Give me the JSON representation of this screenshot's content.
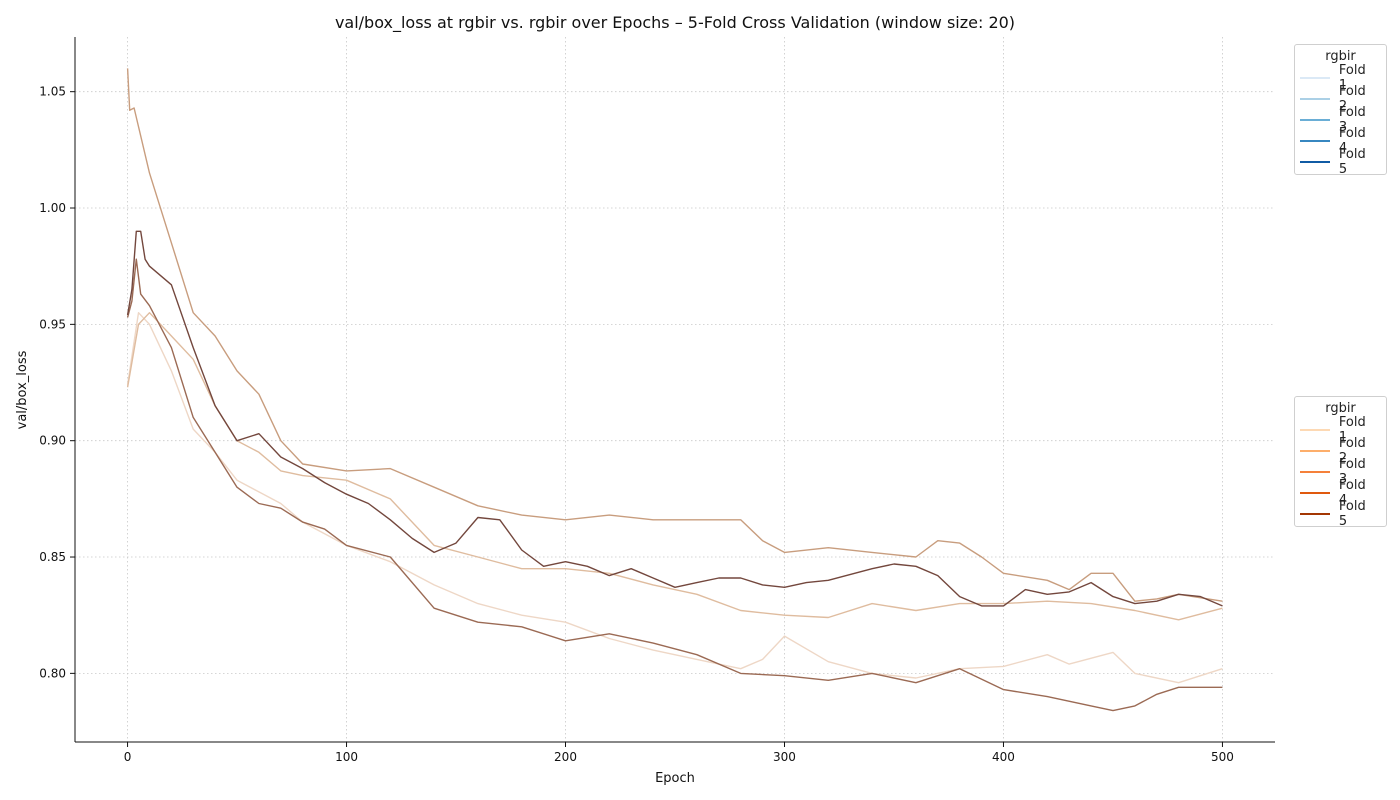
{
  "chart_data": {
    "type": "line",
    "title": "val/box_loss at rgbir vs. rgbir over Epochs – 5-Fold Cross Validation (window size: 20)",
    "xlabel": "Epoch",
    "ylabel": "val/box_loss",
    "xlim": [
      -24,
      524
    ],
    "ylim": [
      0.7705,
      1.0735
    ],
    "xticks": [
      0,
      100,
      200,
      300,
      400,
      500
    ],
    "xtick_labels": [
      "0",
      "100",
      "200",
      "300",
      "400",
      "500"
    ],
    "yticks": [
      0.8,
      0.85,
      0.9,
      0.95,
      1.0,
      1.05
    ],
    "ytick_labels": [
      "0.80",
      "0.85",
      "0.90",
      "0.95",
      "1.00",
      "1.05"
    ],
    "grid": true,
    "legends": [
      {
        "title": "rgbir",
        "placement": "upper-right-outside",
        "entries": [
          {
            "label": "Fold 1",
            "color": "#dbe9f6"
          },
          {
            "label": "Fold 2",
            "color": "#abd0e6"
          },
          {
            "label": "Fold 3",
            "color": "#6aaed6"
          },
          {
            "label": "Fold 4",
            "color": "#3787c0"
          },
          {
            "label": "Fold 5",
            "color": "#105ba4"
          }
        ]
      },
      {
        "title": "rgbir",
        "placement": "center-right-outside",
        "entries": [
          {
            "label": "Fold 1",
            "color": "#fdd9b4"
          },
          {
            "label": "Fold 2",
            "color": "#fdae6b"
          },
          {
            "label": "Fold 3",
            "color": "#f5813a"
          },
          {
            "label": "Fold 4",
            "color": "#e0590e"
          },
          {
            "label": "Fold 5",
            "color": "#a33603"
          }
        ]
      }
    ],
    "series": [
      {
        "color": "#eed7c6",
        "x": [
          0,
          5,
          10,
          20,
          30,
          40,
          50,
          60,
          70,
          80,
          100,
          120,
          140,
          160,
          180,
          200,
          220,
          240,
          260,
          280,
          290,
          300,
          320,
          340,
          360,
          380,
          400,
          420,
          430,
          450,
          460,
          480,
          500
        ],
        "y": [
          0.924,
          0.955,
          0.95,
          0.93,
          0.905,
          0.895,
          0.883,
          0.878,
          0.873,
          0.865,
          0.855,
          0.848,
          0.838,
          0.83,
          0.825,
          0.822,
          0.815,
          0.81,
          0.806,
          0.802,
          0.806,
          0.816,
          0.805,
          0.8,
          0.798,
          0.802,
          0.803,
          0.808,
          0.804,
          0.809,
          0.8,
          0.796,
          0.802
        ]
      },
      {
        "color": "#dfbc9f",
        "x": [
          0,
          5,
          10,
          20,
          30,
          40,
          50,
          60,
          70,
          80,
          100,
          120,
          140,
          160,
          180,
          200,
          220,
          240,
          260,
          280,
          300,
          320,
          340,
          360,
          380,
          400,
          420,
          440,
          460,
          480,
          500
        ],
        "y": [
          0.923,
          0.95,
          0.955,
          0.945,
          0.935,
          0.915,
          0.9,
          0.895,
          0.887,
          0.885,
          0.883,
          0.875,
          0.855,
          0.85,
          0.845,
          0.845,
          0.843,
          0.838,
          0.834,
          0.827,
          0.825,
          0.824,
          0.83,
          0.827,
          0.83,
          0.83,
          0.831,
          0.83,
          0.827,
          0.823,
          0.828
        ]
      },
      {
        "color": "#c89d7e",
        "x": [
          0,
          1,
          3,
          5,
          10,
          20,
          30,
          40,
          50,
          60,
          70,
          80,
          100,
          120,
          140,
          160,
          180,
          200,
          220,
          240,
          260,
          280,
          290,
          300,
          320,
          340,
          360,
          370,
          380,
          390,
          400,
          420,
          430,
          440,
          450,
          460,
          470,
          480,
          500
        ],
        "y": [
          1.06,
          1.042,
          1.043,
          1.035,
          1.015,
          0.985,
          0.955,
          0.945,
          0.93,
          0.92,
          0.9,
          0.89,
          0.887,
          0.888,
          0.88,
          0.872,
          0.868,
          0.866,
          0.868,
          0.866,
          0.866,
          0.866,
          0.857,
          0.852,
          0.854,
          0.852,
          0.85,
          0.857,
          0.856,
          0.85,
          0.843,
          0.84,
          0.836,
          0.843,
          0.843,
          0.831,
          0.832,
          0.834,
          0.831
        ]
      },
      {
        "color": "#9b6a54",
        "x": [
          0,
          2,
          4,
          6,
          10,
          20,
          30,
          40,
          50,
          60,
          70,
          80,
          90,
          100,
          120,
          140,
          160,
          180,
          200,
          220,
          240,
          260,
          280,
          300,
          320,
          340,
          360,
          380,
          400,
          420,
          440,
          450,
          460,
          470,
          480,
          500
        ],
        "y": [
          0.953,
          0.96,
          0.978,
          0.963,
          0.958,
          0.94,
          0.91,
          0.895,
          0.88,
          0.873,
          0.871,
          0.865,
          0.862,
          0.855,
          0.85,
          0.828,
          0.822,
          0.82,
          0.814,
          0.817,
          0.813,
          0.808,
          0.8,
          0.799,
          0.797,
          0.8,
          0.796,
          0.802,
          0.793,
          0.79,
          0.786,
          0.784,
          0.786,
          0.791,
          0.794,
          0.794
        ]
      },
      {
        "color": "#73473d",
        "x": [
          0,
          2,
          4,
          6,
          8,
          10,
          20,
          30,
          40,
          50,
          60,
          70,
          80,
          90,
          100,
          110,
          120,
          130,
          140,
          150,
          160,
          170,
          180,
          190,
          200,
          210,
          220,
          230,
          240,
          250,
          260,
          270,
          280,
          290,
          300,
          310,
          320,
          340,
          350,
          360,
          370,
          380,
          390,
          400,
          410,
          420,
          430,
          440,
          450,
          460,
          470,
          480,
          490,
          500
        ],
        "y": [
          0.954,
          0.965,
          0.99,
          0.99,
          0.978,
          0.975,
          0.967,
          0.94,
          0.915,
          0.9,
          0.903,
          0.893,
          0.888,
          0.882,
          0.877,
          0.873,
          0.866,
          0.858,
          0.852,
          0.856,
          0.867,
          0.866,
          0.853,
          0.846,
          0.848,
          0.846,
          0.842,
          0.845,
          0.841,
          0.837,
          0.839,
          0.841,
          0.841,
          0.838,
          0.837,
          0.839,
          0.84,
          0.845,
          0.847,
          0.846,
          0.842,
          0.833,
          0.829,
          0.829,
          0.836,
          0.834,
          0.835,
          0.839,
          0.833,
          0.83,
          0.831,
          0.834,
          0.833,
          0.829
        ]
      }
    ]
  }
}
